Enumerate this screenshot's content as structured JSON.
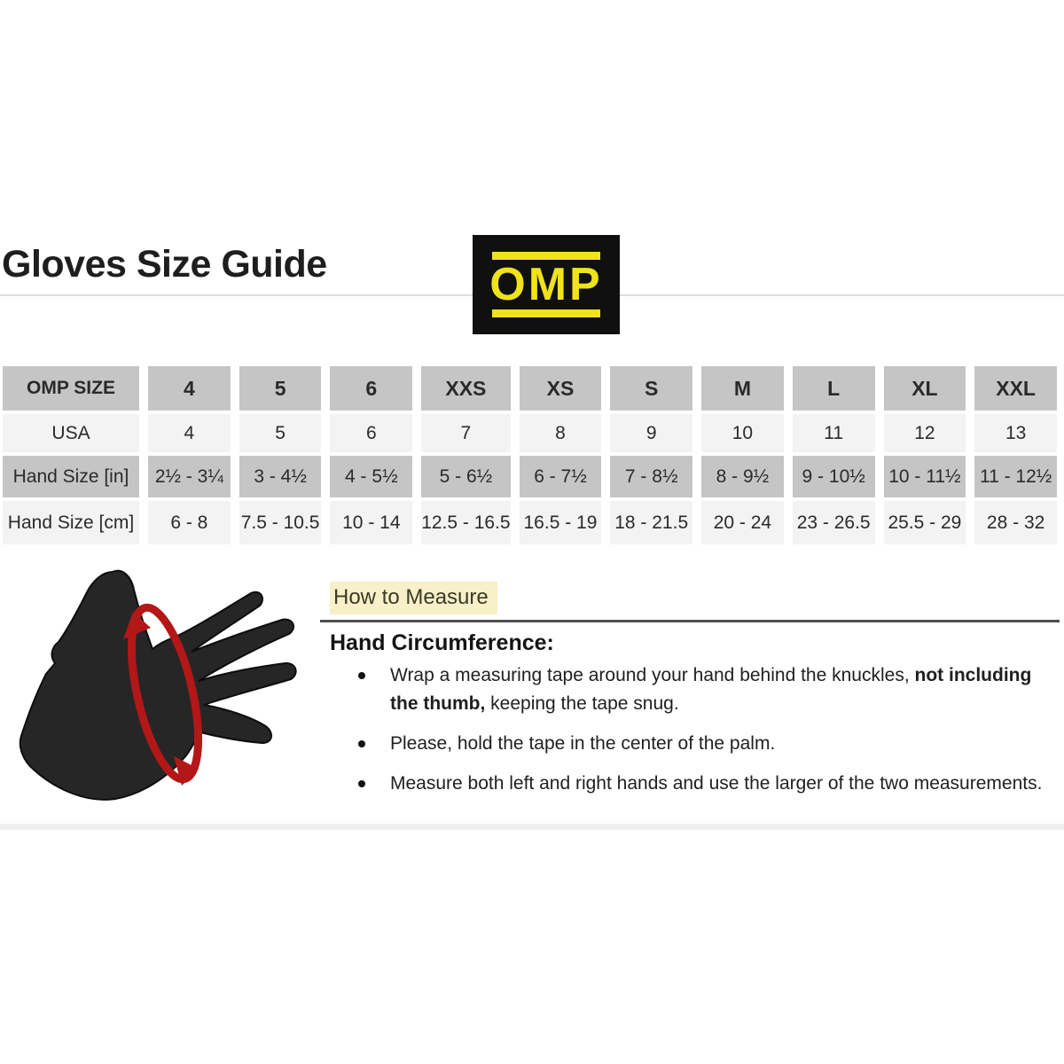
{
  "header": {
    "title": "Gloves Size Guide",
    "logo_text": "OMP"
  },
  "size_table": {
    "header": [
      "OMP SIZE",
      "4",
      "5",
      "6",
      "XXS",
      "XS",
      "S",
      "M",
      "L",
      "XL",
      "XXL"
    ],
    "rows": [
      {
        "label": "USA",
        "shade": "light",
        "values": [
          "4",
          "5",
          "6",
          "7",
          "8",
          "9",
          "10",
          "11",
          "12",
          "13"
        ]
      },
      {
        "label": "Hand Size [in]",
        "shade": "gray",
        "values": [
          "2½ - 3¼",
          "3 - 4½",
          "4 - 5½",
          "5 - 6½",
          "6 - 7½",
          "7 - 8½",
          "8 - 9½",
          "9 - 10½",
          "10 - 11½",
          "11 - 12½"
        ]
      },
      {
        "label": "Hand Size [cm]",
        "shade": "light",
        "values": [
          "6 - 8",
          "7.5 - 10.5",
          "10 - 14",
          "12.5 - 16.5",
          "16.5 - 19",
          "18 - 21.5",
          "20 - 24",
          "23 - 26.5",
          "25.5 - 29",
          "28 - 32"
        ]
      }
    ]
  },
  "measure": {
    "heading": "How to Measure",
    "subheading": "Hand Circumference:",
    "bullets": [
      {
        "segments": [
          {
            "text": "Wrap a measuring tape around your hand behind the knuckles, ",
            "bold": false
          },
          {
            "text": "not including the thumb,",
            "bold": true
          },
          {
            "text": " keeping the tape snug.",
            "bold": false
          }
        ]
      },
      {
        "segments": [
          {
            "text": "Please, hold the tape in the center of the palm.",
            "bold": false
          }
        ]
      },
      {
        "segments": [
          {
            "text": "Measure both left and right hands and use the larger of the two measurements.",
            "bold": false
          }
        ]
      }
    ]
  },
  "figure": {
    "label": "hand with red measuring-tape loop behind the knuckles"
  },
  "colors": {
    "logo_bg": "#101010",
    "logo_yellow": "#f0e21b",
    "row_gray": "#c5c5c5",
    "row_light": "#f3f3f3",
    "highlight": "#f7f0c8",
    "hand_black": "#262626",
    "arrow_red": "#b31717"
  }
}
